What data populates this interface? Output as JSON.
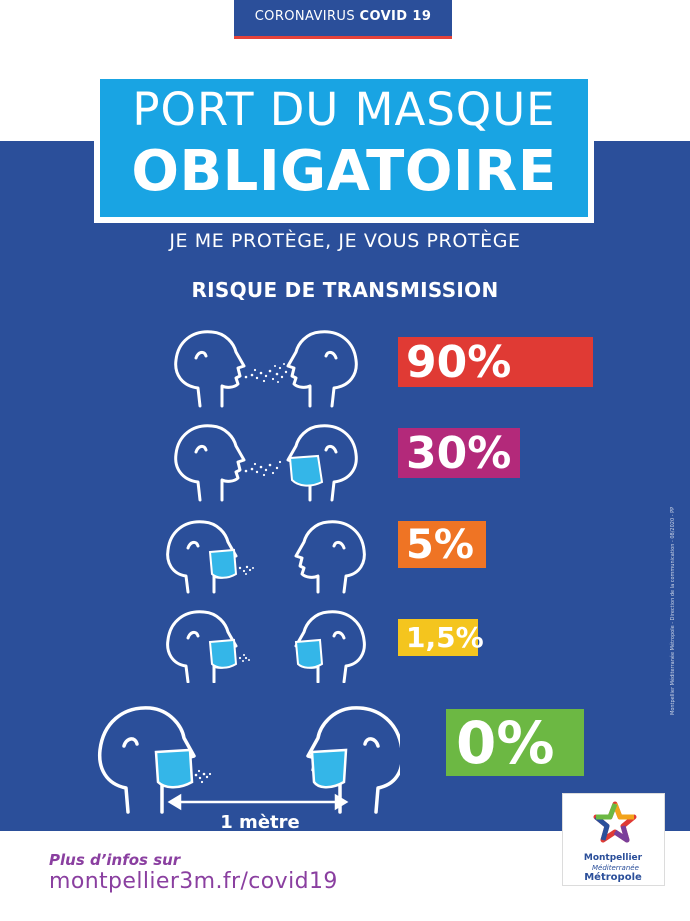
{
  "header": {
    "prefix": "CORONAVIRUS",
    "highlight": "COVID 19"
  },
  "title": {
    "line1": "PORT DU MASQUE",
    "line2": "OBLIGATOIRE"
  },
  "tagline": "JE ME PROTÈGE, JE VOUS PROTÈGE",
  "section_title": "RISQUE DE TRANSMISSION",
  "risk_levels": [
    {
      "value": "90%",
      "color": "#e03a34",
      "emitter_masked": false,
      "receiver_masked": false
    },
    {
      "value": "30%",
      "color": "#b3297a",
      "emitter_masked": false,
      "receiver_masked": true
    },
    {
      "value": "5%",
      "color": "#ef7424",
      "emitter_masked": true,
      "receiver_masked": false
    },
    {
      "value": "1,5%",
      "color": "#f4c51e",
      "emitter_masked": true,
      "receiver_masked": true
    },
    {
      "value": "0%",
      "color": "#6cb843",
      "emitter_masked": true,
      "receiver_masked": true
    }
  ],
  "distance_label": "1 mètre",
  "side_credit": "Montpellier Méditerranée Métropole - Direction de la communication - 08/2020 - PP",
  "footer": {
    "more_info": "Plus d’infos sur",
    "url": "montpellier3m.fr/covid19"
  },
  "logo": {
    "name": "Montpellier",
    "sub": "Méditerranée",
    "metropole": "Métropole"
  },
  "colors": {
    "navy": "#2b4f9a",
    "sky": "#19a4e3",
    "mask": "#34b6e8",
    "footer_text": "#8a3fa0"
  },
  "icons": [
    "face-profile-icon",
    "surgical-mask-icon",
    "droplet-spray-icon",
    "double-arrow-icon",
    "star-logo-icon"
  ]
}
